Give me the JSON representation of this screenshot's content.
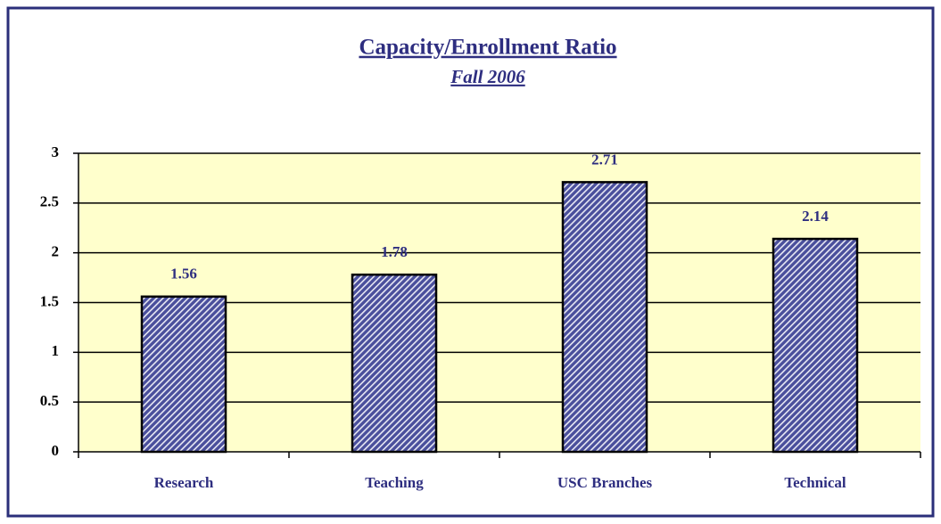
{
  "chart_data": {
    "type": "bar",
    "title": "Capacity/Enrollment Ratio",
    "subtitle": "Fall 2006",
    "categories": [
      "Research",
      "Teaching",
      "USC Branches",
      "Technical"
    ],
    "values": [
      1.56,
      1.78,
      2.71,
      2.14
    ],
    "color": "#4a4f9c",
    "ylim": [
      0,
      3
    ],
    "yticks": [
      0,
      0.5,
      1,
      1.5,
      2,
      2.5,
      3
    ],
    "grid": true
  }
}
